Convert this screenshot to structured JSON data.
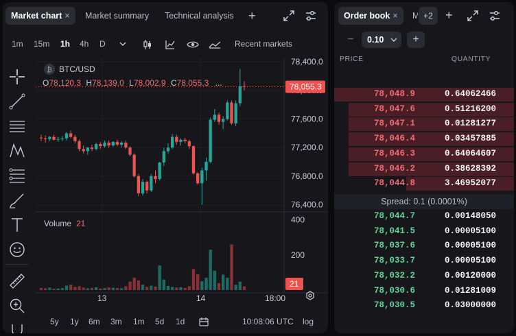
{
  "left_tabs": {
    "market_chart": "Market chart",
    "market_summary": "Market summary",
    "technical_analysis": "Technical analysis",
    "close_glyph": "×",
    "add_glyph": "+"
  },
  "timeframes": [
    "1m",
    "15m",
    "1h",
    "4h",
    "D"
  ],
  "active_timeframe": "1h",
  "recent_markets": "Recent markets",
  "chart": {
    "symbol": "BTC/USD",
    "ohlc": {
      "o_label": "O",
      "o": "78,120.3",
      "h_label": "H",
      "h": "78,139.0",
      "l_label": "L",
      "l": "78,002.9",
      "c_label": "C",
      "c": "78,055.3",
      "more": "..."
    },
    "last_price": "78,055.3",
    "volume_label": "Volume",
    "volume_value": "21",
    "volume_tag": "21",
    "time_axis": {
      "label_13": "13",
      "label_14": "14",
      "label_18": "18:00"
    },
    "time_now": "10:08:06 UTC",
    "log": "log"
  },
  "chart_data": {
    "type": "candlestick",
    "symbol": "BTC/USD",
    "interval": "1h",
    "price_ticks": [
      "78,400.0",
      "78,000.0",
      "77,600.0",
      "77,200.0",
      "76,800.0",
      "76,400.0"
    ],
    "price_tick_values": [
      78400,
      78000,
      77600,
      77200,
      76800,
      76400
    ],
    "volume_ticks": [
      "400",
      "200"
    ],
    "volume_tick_values": [
      400,
      200
    ],
    "ylim": [
      76300,
      78450
    ],
    "volume_ylim": [
      0,
      430
    ],
    "colors": {
      "up": "#26a69a",
      "down": "#ef5350"
    },
    "candles": [
      {
        "o": 77340,
        "h": 77380,
        "l": 77290,
        "c": 77330
      },
      {
        "o": 77330,
        "h": 77370,
        "l": 77270,
        "c": 77320
      },
      {
        "o": 77320,
        "h": 77360,
        "l": 77290,
        "c": 77350
      },
      {
        "o": 77350,
        "h": 77380,
        "l": 77300,
        "c": 77310
      },
      {
        "o": 77310,
        "h": 77350,
        "l": 77280,
        "c": 77320
      },
      {
        "o": 77320,
        "h": 77360,
        "l": 77290,
        "c": 77330
      },
      {
        "o": 77330,
        "h": 77420,
        "l": 77300,
        "c": 77400
      },
      {
        "o": 77400,
        "h": 77440,
        "l": 77330,
        "c": 77350
      },
      {
        "o": 77350,
        "h": 77380,
        "l": 77260,
        "c": 77290
      },
      {
        "o": 77290,
        "h": 77310,
        "l": 77150,
        "c": 77180
      },
      {
        "o": 77180,
        "h": 77230,
        "l": 77120,
        "c": 77150
      },
      {
        "o": 77150,
        "h": 77210,
        "l": 77100,
        "c": 77200
      },
      {
        "o": 77200,
        "h": 77240,
        "l": 77150,
        "c": 77180
      },
      {
        "o": 77180,
        "h": 77270,
        "l": 77160,
        "c": 77250
      },
      {
        "o": 77250,
        "h": 77280,
        "l": 77180,
        "c": 77220
      },
      {
        "o": 77220,
        "h": 77300,
        "l": 77200,
        "c": 77270
      },
      {
        "o": 77270,
        "h": 77300,
        "l": 77200,
        "c": 77230
      },
      {
        "o": 77230,
        "h": 77290,
        "l": 77210,
        "c": 77280
      },
      {
        "o": 77280,
        "h": 77310,
        "l": 77220,
        "c": 77240
      },
      {
        "o": 77240,
        "h": 77290,
        "l": 77200,
        "c": 77270
      },
      {
        "o": 77270,
        "h": 77300,
        "l": 77180,
        "c": 77200
      },
      {
        "o": 77200,
        "h": 77220,
        "l": 77080,
        "c": 77100
      },
      {
        "o": 77100,
        "h": 77120,
        "l": 76780,
        "c": 76800
      },
      {
        "o": 76800,
        "h": 76830,
        "l": 76520,
        "c": 76560
      },
      {
        "o": 76560,
        "h": 76760,
        "l": 76530,
        "c": 76720
      },
      {
        "o": 76720,
        "h": 76740,
        "l": 76560,
        "c": 76600
      },
      {
        "o": 76600,
        "h": 76830,
        "l": 76580,
        "c": 76800
      },
      {
        "o": 76800,
        "h": 76880,
        "l": 76700,
        "c": 76760
      },
      {
        "o": 76760,
        "h": 77000,
        "l": 76740,
        "c": 76990
      },
      {
        "o": 76990,
        "h": 77200,
        "l": 76940,
        "c": 77150
      },
      {
        "o": 77150,
        "h": 77260,
        "l": 77120,
        "c": 77200
      },
      {
        "o": 77200,
        "h": 77390,
        "l": 77180,
        "c": 77350
      },
      {
        "o": 77350,
        "h": 77380,
        "l": 77240,
        "c": 77280
      },
      {
        "o": 77280,
        "h": 77330,
        "l": 77230,
        "c": 77310
      },
      {
        "o": 77310,
        "h": 77340,
        "l": 77260,
        "c": 77290
      },
      {
        "o": 77290,
        "h": 77310,
        "l": 77180,
        "c": 77220
      },
      {
        "o": 77220,
        "h": 77230,
        "l": 76820,
        "c": 76840
      },
      {
        "o": 76840,
        "h": 76860,
        "l": 76680,
        "c": 76700
      },
      {
        "o": 76700,
        "h": 76920,
        "l": 76400,
        "c": 76880
      },
      {
        "o": 76880,
        "h": 77060,
        "l": 76740,
        "c": 77000
      },
      {
        "o": 77000,
        "h": 77620,
        "l": 76980,
        "c": 77590
      },
      {
        "o": 77590,
        "h": 77740,
        "l": 77560,
        "c": 77660
      },
      {
        "o": 77660,
        "h": 77690,
        "l": 77520,
        "c": 77560
      },
      {
        "o": 77560,
        "h": 77640,
        "l": 77460,
        "c": 77600
      },
      {
        "o": 77600,
        "h": 77860,
        "l": 77580,
        "c": 77830
      },
      {
        "o": 77830,
        "h": 77860,
        "l": 77520,
        "c": 77540
      },
      {
        "o": 77540,
        "h": 77860,
        "l": 77500,
        "c": 77820
      },
      {
        "o": 77820,
        "h": 78300,
        "l": 77780,
        "c": 78060
      },
      {
        "o": 78060,
        "h": 78130,
        "l": 78000,
        "c": 78050
      }
    ],
    "volumes": [
      12,
      10,
      14,
      8,
      9,
      11,
      25,
      30,
      18,
      22,
      14,
      10,
      12,
      16,
      9,
      11,
      15,
      13,
      12,
      10,
      22,
      48,
      70,
      55,
      30,
      18,
      25,
      20,
      140,
      60,
      24,
      18,
      14,
      16,
      12,
      22,
      120,
      90,
      50,
      70,
      230,
      110,
      40,
      88,
      70,
      260,
      30,
      48,
      21
    ]
  },
  "bottom": {
    "ranges": [
      "5y",
      "1y",
      "6m",
      "3m",
      "1m",
      "5d",
      "1d"
    ]
  },
  "orderbook": {
    "tab": "Order book",
    "peek_tab": "M",
    "plus_count": "+2",
    "minus": "−",
    "plus": "+",
    "step": "0.10",
    "price_header": "PRICE",
    "quantity_header": "QUANTITY",
    "asks": [
      {
        "price": "78,048.9",
        "qty": "0.64062466",
        "depth": 1.0
      },
      {
        "price": "78,047.6",
        "qty": "0.51216200",
        "depth": 0.92
      },
      {
        "price": "78,047.1",
        "qty": "0.01281277",
        "depth": 0.92
      },
      {
        "price": "78,046.4",
        "qty": "0.03457885",
        "depth": 0.92
      },
      {
        "price": "78,046.3",
        "qty": "0.64064607",
        "depth": 0.92
      },
      {
        "price": "78,046.2",
        "qty": "0.38628392",
        "depth": 0.92
      },
      {
        "price": "78,044.8",
        "qty": "3.46952077",
        "depth": 0.6
      }
    ],
    "spread": "Spread: 0.1 (0.0001%)",
    "bids": [
      {
        "price": "78,044.7",
        "qty": "0.00148050"
      },
      {
        "price": "78,041.5",
        "qty": "0.00005100"
      },
      {
        "price": "78,037.6",
        "qty": "0.00005100"
      },
      {
        "price": "78,033.7",
        "qty": "0.00005100"
      },
      {
        "price": "78,032.2",
        "qty": "0.00120000"
      },
      {
        "price": "78,030.6",
        "qty": "0.01281009"
      },
      {
        "price": "78,030.5",
        "qty": "0.03000000"
      }
    ]
  }
}
